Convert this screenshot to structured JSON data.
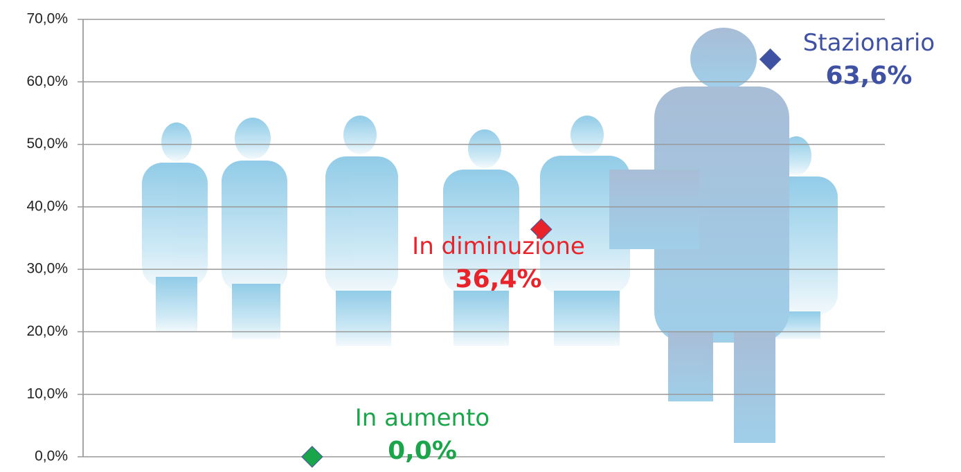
{
  "chart_data": {
    "type": "scatter",
    "xlim": [
      0,
      3.5
    ],
    "ylim": [
      0,
      70
    ],
    "yticks": [
      {
        "value": 0,
        "label": "0,0%"
      },
      {
        "value": 10,
        "label": "10,0%"
      },
      {
        "value": 20,
        "label": "20,0%"
      },
      {
        "value": 30,
        "label": "30,0%"
      },
      {
        "value": 40,
        "label": "40,0%"
      },
      {
        "value": 50,
        "label": "50,0%"
      },
      {
        "value": 60,
        "label": "60,0%"
      },
      {
        "value": 70,
        "label": "70,0%"
      }
    ],
    "grid": true,
    "series": [
      {
        "name": "In aumento",
        "color": "#1aa54a",
        "x": [
          1
        ],
        "values": [
          0
        ],
        "value_labels": [
          "0,0%"
        ]
      },
      {
        "name": "In diminuzione",
        "color": "#e8232a",
        "x": [
          2
        ],
        "values": [
          36.4
        ],
        "value_labels": [
          "36,4%"
        ]
      },
      {
        "name": "Stazionario",
        "color": "#3f51a3",
        "x": [
          3
        ],
        "values": [
          63.6
        ],
        "value_labels": [
          "63,6%"
        ]
      }
    ]
  }
}
